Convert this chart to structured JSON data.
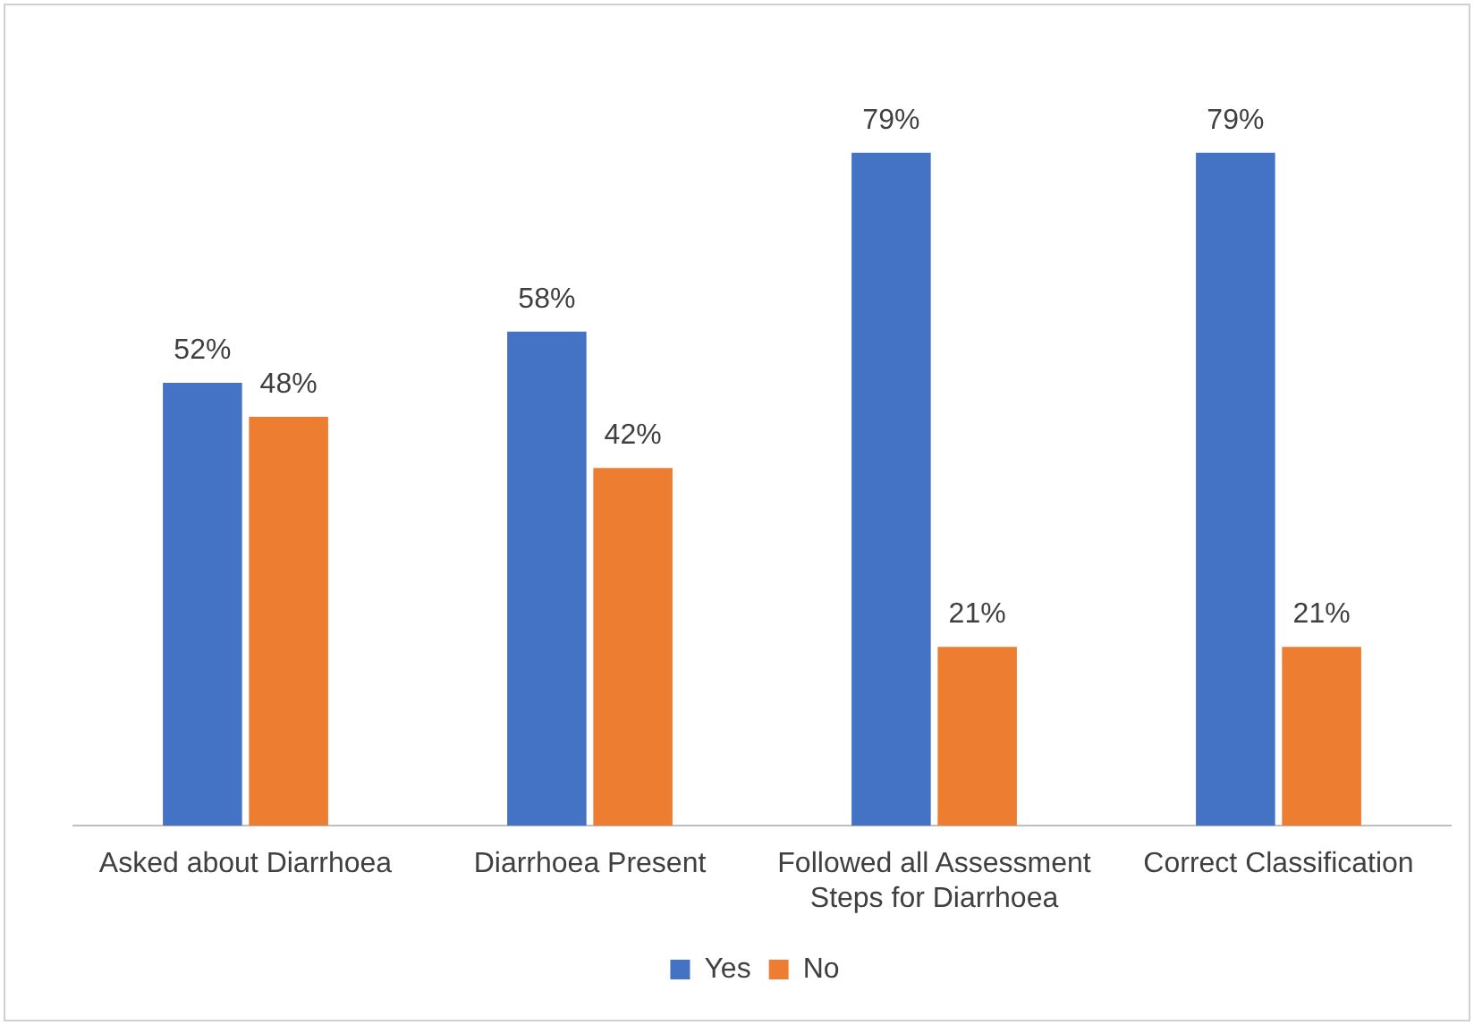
{
  "chart_data": {
    "type": "bar",
    "categories": [
      "Asked about Diarrhoea",
      "Diarrhoea Present",
      "Followed all Assessment Steps for Diarrhoea",
      "Correct Classification"
    ],
    "series": [
      {
        "name": "Yes",
        "color": "#4472c4",
        "values": [
          52,
          58,
          79,
          79
        ],
        "value_labels": [
          "52%",
          "58%",
          "79%",
          "79%"
        ]
      },
      {
        "name": "No",
        "color": "#ed7d31",
        "values": [
          48,
          42,
          21,
          21
        ],
        "value_labels": [
          "48%",
          "42%",
          "21%",
          "21%"
        ]
      }
    ],
    "legend": "bottom"
  }
}
